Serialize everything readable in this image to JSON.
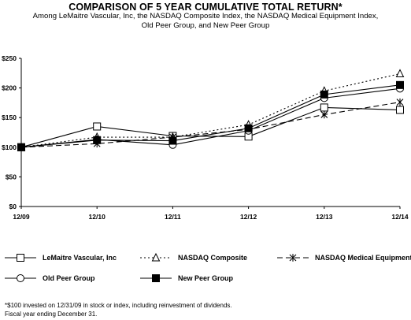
{
  "chart_data": {
    "type": "line",
    "title": "COMPARISON OF 5 YEAR CUMULATIVE TOTAL RETURN*",
    "subtitle_line1": "Among LeMaitre Vascular, Inc, the NASDAQ Composite Index, the NASDAQ Medical Equipment Index,",
    "subtitle_line2": "Old Peer Group, and New Peer Group",
    "categories": [
      "12/09",
      "12/10",
      "12/11",
      "12/12",
      "12/13",
      "12/14"
    ],
    "ylim": [
      0,
      250
    ],
    "yticks": [
      "$0",
      "$50",
      "$100",
      "$150",
      "$200",
      "$250"
    ],
    "yticks_values": [
      0,
      50,
      100,
      150,
      200,
      250
    ],
    "grid": false,
    "legend_position": "bottom",
    "series": [
      {
        "name": "LeMaitre Vascular, Inc",
        "values": [
          100,
          135,
          119,
          118,
          167,
          163
        ],
        "marker": "square-open",
        "dash": "solid"
      },
      {
        "name": "NASDAQ Composite",
        "values": [
          100,
          117,
          117,
          138,
          195,
          224
        ],
        "marker": "triangle-open",
        "dash": "dotted"
      },
      {
        "name": "NASDAQ Medical Equipment",
        "values": [
          100,
          106,
          117,
          130,
          155,
          176
        ],
        "marker": "star",
        "dash": "dashed"
      },
      {
        "name": "Old Peer Group",
        "values": [
          100,
          113,
          104,
          128,
          183,
          199
        ],
        "marker": "circle-open",
        "dash": "solid"
      },
      {
        "name": "New Peer Group",
        "values": [
          100,
          112,
          111,
          132,
          189,
          205
        ],
        "marker": "square-filled",
        "dash": "solid"
      }
    ]
  },
  "footnotes": {
    "line1": "*$100 invested on 12/31/09 in stock or index, including reinvestment of dividends.",
    "line2": "Fiscal year ending December 31."
  }
}
